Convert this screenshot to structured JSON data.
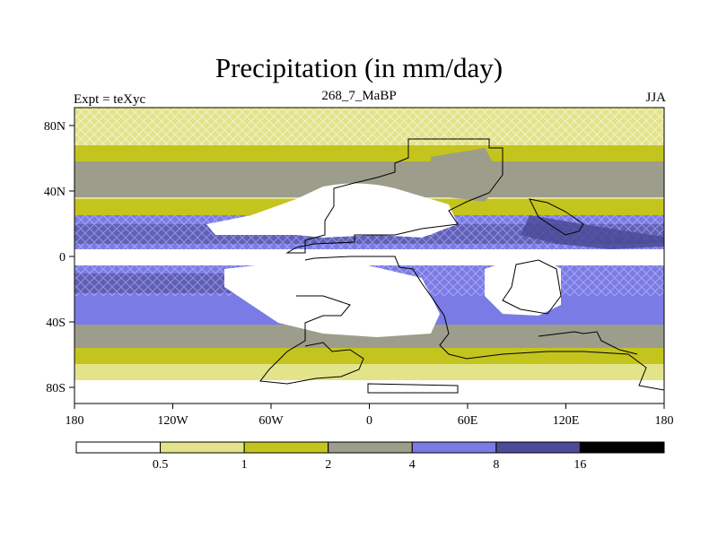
{
  "title": "Precipitation (in mm/day)",
  "experiment_label": "Expt = teXyc",
  "run_label": "268_7_MaBP",
  "season_label": "JJA",
  "map": {
    "lon_ticks": [
      "180",
      "120W",
      "60W",
      "0",
      "60E",
      "120E",
      "180"
    ],
    "lat_ticks": [
      "80N",
      "40N",
      "0",
      "40S",
      "80S"
    ]
  },
  "colorbar": {
    "colors": [
      "#ffffff",
      "#e3e38a",
      "#c4c41e",
      "#9d9d8c",
      "#7b7be6",
      "#4b4b99",
      "#000000"
    ],
    "levels": [
      "0.5",
      "1",
      "2",
      "4",
      "8",
      "16"
    ]
  }
}
